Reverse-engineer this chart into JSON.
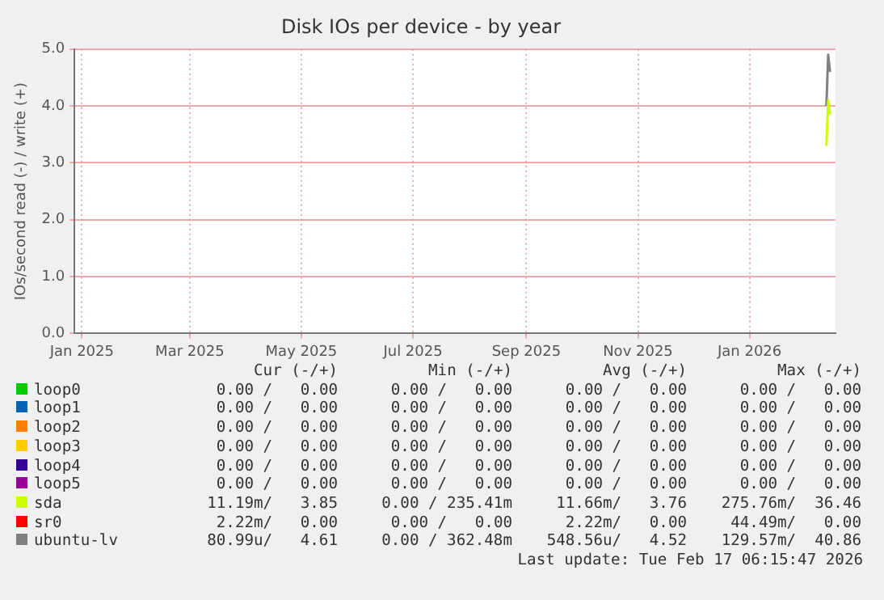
{
  "chart_data": {
    "type": "line",
    "title": "Disk IOs per device - by year",
    "ylabel": "IOs/second read (-) / write (+)",
    "xlim": [
      "2024-12-28",
      "2026-02-17"
    ],
    "xticks": [
      {
        "value": "2025-01-01",
        "label": "Jan 2025"
      },
      {
        "value": "2025-03-01",
        "label": "Mar 2025"
      },
      {
        "value": "2025-05-01",
        "label": "May 2025"
      },
      {
        "value": "2025-07-01",
        "label": "Jul 2025"
      },
      {
        "value": "2025-09-01",
        "label": "Sep 2025"
      },
      {
        "value": "2025-11-01",
        "label": "Nov 2025"
      },
      {
        "value": "2026-01-01",
        "label": "Jan 2026"
      }
    ],
    "ylim": [
      0,
      5
    ],
    "yticks": [
      {
        "value": 0,
        "label": "0.0"
      },
      {
        "value": 1,
        "label": "1.0"
      },
      {
        "value": 2,
        "label": "2.0"
      },
      {
        "value": 3,
        "label": "3.0"
      },
      {
        "value": 4,
        "label": "4.0"
      },
      {
        "value": 5,
        "label": "5.0"
      }
    ],
    "grid": true,
    "legend": "bottom",
    "marker": "none",
    "line_style": "solid",
    "series": [
      {
        "name": "loop0",
        "color": "#00cc00"
      },
      {
        "name": "loop1",
        "color": "#0066b3"
      },
      {
        "name": "loop2",
        "color": "#ff8000"
      },
      {
        "name": "loop3",
        "color": "#ffcc00"
      },
      {
        "name": "loop4",
        "color": "#330099"
      },
      {
        "name": "loop5",
        "color": "#990099"
      },
      {
        "name": "sda",
        "color": "#ccff00",
        "x": [
          "2026-02-12",
          "2026-02-13",
          "2026-02-14"
        ],
        "values": [
          3.3,
          4.1,
          3.85
        ]
      },
      {
        "name": "sr0",
        "color": "#ff0000"
      },
      {
        "name": "ubuntu-lv",
        "color": "#808080",
        "x": [
          "2026-02-12",
          "2026-02-13",
          "2026-02-14"
        ],
        "values": [
          4.0,
          4.9,
          4.6
        ]
      }
    ],
    "annotations": [
      "Cur (-/+)",
      "Min (-/+)",
      "Avg (-/+)",
      "Max (-/+)",
      "0.00 /   0.00",
      "0.00 /   0.00",
      "0.00 /   0.00",
      "0.00 /   0.00",
      "0.00 /   0.00",
      "0.00 /   0.00",
      "0.00 /   0.00",
      "0.00 /   0.00",
      "0.00 /   0.00",
      "0.00 /   0.00",
      "0.00 /   0.00",
      "0.00 /   0.00",
      "0.00 /   0.00",
      "0.00 /   0.00",
      "0.00 /   0.00",
      "0.00 /   0.00",
      "0.00 /   0.00",
      "0.00 /   0.00",
      "0.00 /   0.00",
      "0.00 /   0.00",
      "0.00 /   0.00",
      "0.00 /   0.00",
      "0.00 /   0.00",
      "0.00 /   0.00",
      "11.19m/   3.85",
      "0.00 / 235.41m",
      "11.66m/   3.76",
      "275.76m/  36.46",
      "2.22m/   0.00",
      "0.00 /   0.00",
      "2.22m/   0.00",
      "44.49m/   0.00",
      "80.99u/   4.61",
      "0.00 / 362.48m",
      "548.56u/   4.52",
      "129.57m/  40.86",
      "Last update: Tue Feb 17 06:15:47 2026"
    ]
  }
}
